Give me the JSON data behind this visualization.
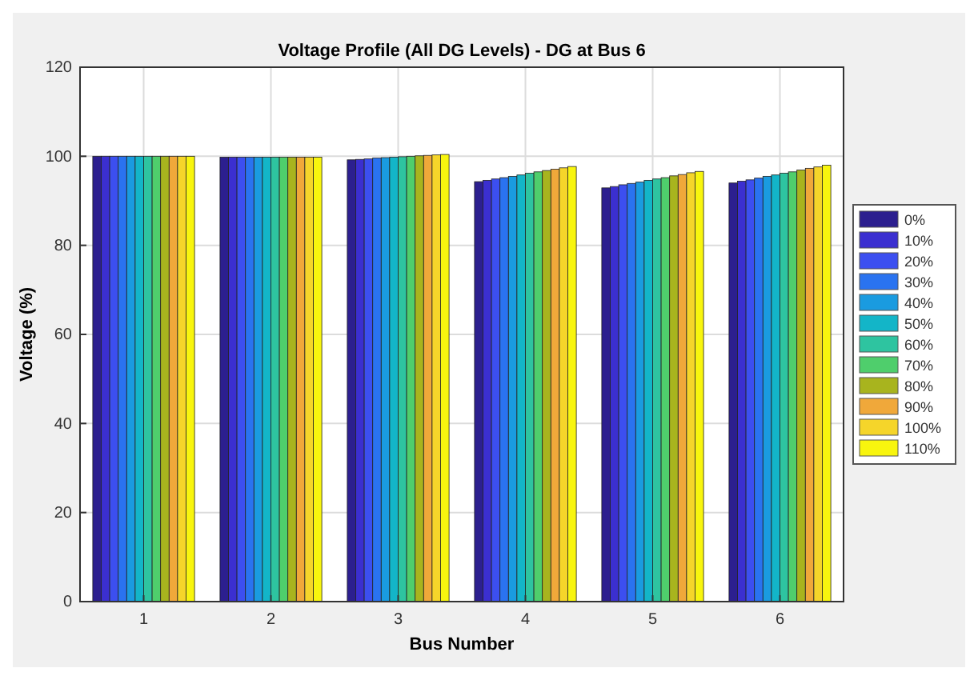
{
  "chart_data": {
    "type": "bar",
    "title": "Voltage Profile (All DG Levels) - DG at Bus 6",
    "xlabel": "Bus Number",
    "ylabel": "Voltage (%)",
    "categories": [
      "1",
      "2",
      "3",
      "4",
      "5",
      "6"
    ],
    "series": [
      {
        "name": "0%",
        "color": "#2c1f8f",
        "values": [
          100,
          99.8,
          99.2,
          94.3,
          92.9,
          94.0
        ]
      },
      {
        "name": "10%",
        "color": "#3b2fd0",
        "values": [
          100,
          99.8,
          99.3,
          94.6,
          93.2,
          94.4
        ]
      },
      {
        "name": "20%",
        "color": "#3c4ff0",
        "values": [
          100,
          99.8,
          99.4,
          94.9,
          93.6,
          94.7
        ]
      },
      {
        "name": "30%",
        "color": "#2a73f0",
        "values": [
          100,
          99.8,
          99.6,
          95.2,
          93.9,
          95.1
        ]
      },
      {
        "name": "40%",
        "color": "#1a9be0",
        "values": [
          100,
          99.8,
          99.7,
          95.5,
          94.2,
          95.5
        ]
      },
      {
        "name": "50%",
        "color": "#13b5c8",
        "values": [
          100,
          99.8,
          99.8,
          95.8,
          94.6,
          95.8
        ]
      },
      {
        "name": "60%",
        "color": "#2ec4a0",
        "values": [
          100,
          99.8,
          99.9,
          96.2,
          94.9,
          96.2
        ]
      },
      {
        "name": "70%",
        "color": "#4fce6c",
        "values": [
          100,
          99.8,
          100,
          96.5,
          95.2,
          96.5
        ]
      },
      {
        "name": "80%",
        "color": "#a8b41e",
        "values": [
          100,
          99.8,
          100.1,
          96.8,
          95.6,
          96.9
        ]
      },
      {
        "name": "90%",
        "color": "#f0a83a",
        "values": [
          100,
          99.8,
          100.2,
          97.1,
          95.9,
          97.3
        ]
      },
      {
        "name": "100%",
        "color": "#f5d52a",
        "values": [
          100,
          99.8,
          100.3,
          97.4,
          96.3,
          97.6
        ]
      },
      {
        "name": "110%",
        "color": "#f8f50e",
        "values": [
          100,
          99.8,
          100.4,
          97.7,
          96.6,
          98.0
        ]
      }
    ],
    "ylim": [
      0,
      120
    ],
    "yticks": [
      0,
      20,
      40,
      60,
      80,
      100,
      120
    ],
    "grid": true,
    "legend": "right"
  }
}
